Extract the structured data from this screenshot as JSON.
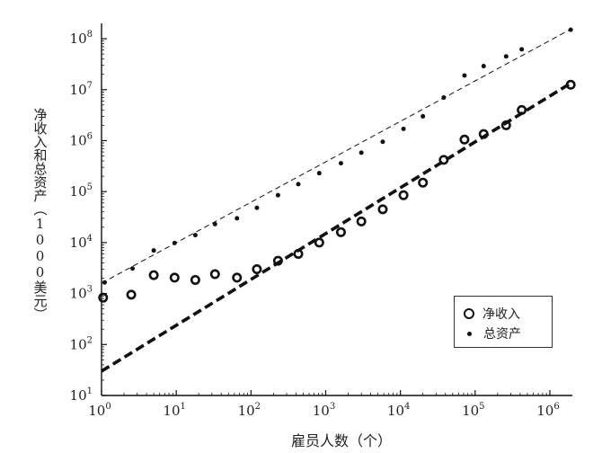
{
  "chart_data": {
    "type": "scatter",
    "xscale": "log",
    "yscale": "log",
    "xlim": [
      1,
      2000000
    ],
    "ylim": [
      10,
      200000000
    ],
    "xlabel": "雇员人数（个）",
    "ylabel_vertical": "净收入和总资产",
    "ylabel_unit": "（1000美元）",
    "x_ticks": [
      {
        "value": 1,
        "base": "10",
        "exp": "0"
      },
      {
        "value": 10,
        "base": "10",
        "exp": "1"
      },
      {
        "value": 100,
        "base": "10",
        "exp": "2"
      },
      {
        "value": 1000,
        "base": "10",
        "exp": "3"
      },
      {
        "value": 10000,
        "base": "10",
        "exp": "4"
      },
      {
        "value": 100000,
        "base": "10",
        "exp": "5"
      },
      {
        "value": 1000000,
        "base": "10",
        "exp": "6"
      }
    ],
    "y_ticks": [
      {
        "value": 10,
        "base": "10",
        "exp": "1"
      },
      {
        "value": 100,
        "base": "10",
        "exp": "2"
      },
      {
        "value": 1000,
        "base": "10",
        "exp": "3"
      },
      {
        "value": 10000,
        "base": "10",
        "exp": "4"
      },
      {
        "value": 100000,
        "base": "10",
        "exp": "5"
      },
      {
        "value": 1000000,
        "base": "10",
        "exp": "6"
      },
      {
        "value": 10000000,
        "base": "10",
        "exp": "7"
      },
      {
        "value": 100000000,
        "base": "10",
        "exp": "8"
      }
    ],
    "series": [
      {
        "name": "净收入",
        "marker": "ring",
        "points": [
          [
            1.05,
            830
          ],
          [
            2.5,
            950
          ],
          [
            5,
            2300
          ],
          [
            9.5,
            2050
          ],
          [
            18,
            1850
          ],
          [
            33,
            2400
          ],
          [
            65,
            2050
          ],
          [
            120,
            3000
          ],
          [
            230,
            4400
          ],
          [
            430,
            6000
          ],
          [
            820,
            10000
          ],
          [
            1600,
            16000
          ],
          [
            3000,
            26000
          ],
          [
            5800,
            45000
          ],
          [
            11000,
            85000
          ],
          [
            20000,
            150000
          ],
          [
            38000,
            420000
          ],
          [
            72000,
            1050000
          ],
          [
            130000,
            1350000
          ],
          [
            260000,
            2000000
          ],
          [
            420000,
            4000000
          ],
          [
            1900000,
            12500000
          ]
        ],
        "trend": {
          "x": [
            1,
            2000000
          ],
          "y": [
            30,
            14000000
          ],
          "style": "thick-dashed"
        }
      },
      {
        "name": "总资产",
        "marker": "dot",
        "points": [
          [
            1.1,
            1650
          ],
          [
            2.6,
            3100
          ],
          [
            5,
            7000
          ],
          [
            9.5,
            9800
          ],
          [
            18,
            14000
          ],
          [
            33,
            23000
          ],
          [
            65,
            30000
          ],
          [
            120,
            48000
          ],
          [
            230,
            85000
          ],
          [
            430,
            140000
          ],
          [
            820,
            230000
          ],
          [
            1600,
            360000
          ],
          [
            3000,
            580000
          ],
          [
            5800,
            950000
          ],
          [
            11000,
            1700000
          ],
          [
            20000,
            3000000
          ],
          [
            38000,
            7000000
          ],
          [
            72000,
            19000000
          ],
          [
            130000,
            29000000
          ],
          [
            260000,
            45000000
          ],
          [
            420000,
            62000000
          ],
          [
            1900000,
            150000000
          ]
        ],
        "trend": {
          "x": [
            1,
            2000000
          ],
          "y": [
            1600,
            160000000
          ],
          "style": "thin-dashed"
        }
      }
    ],
    "legend": {
      "position": "lower-right"
    }
  }
}
